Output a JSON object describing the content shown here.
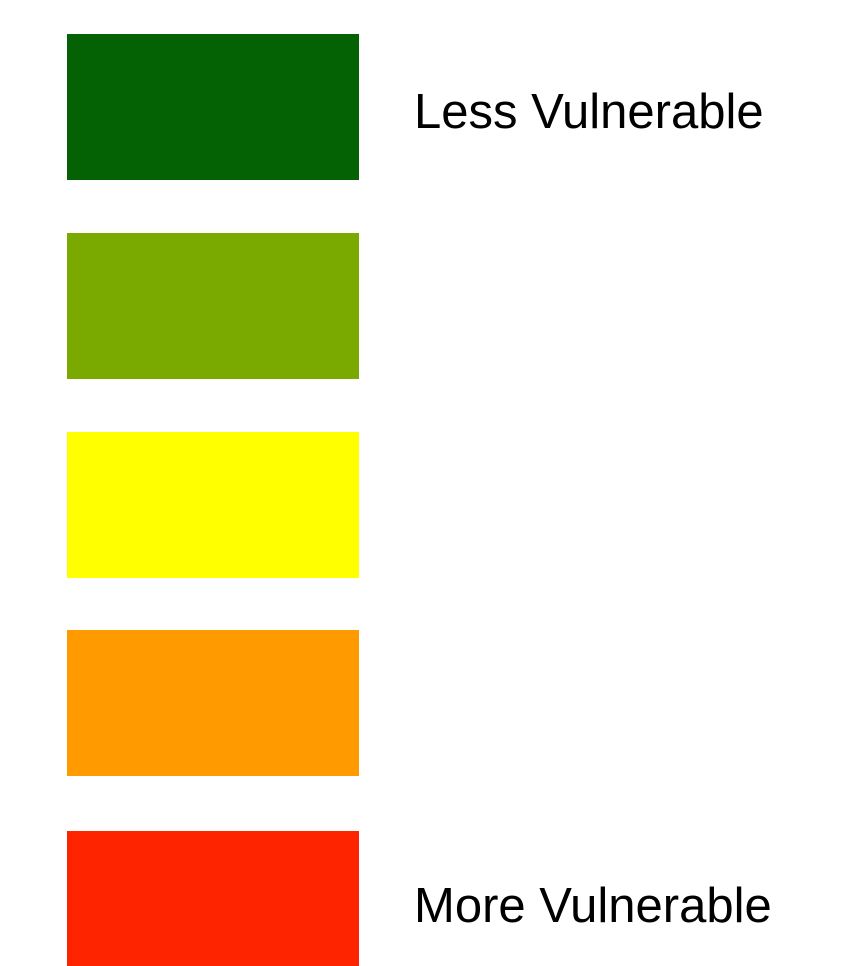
{
  "legend": {
    "swatches": [
      {
        "color": "#046204"
      },
      {
        "color": "#7aaa00"
      },
      {
        "color": "#ffff00"
      },
      {
        "color": "#ff9a00"
      },
      {
        "color": "#ff2400"
      }
    ],
    "top_label": "Less Vulnerable",
    "bottom_label": "More Vulnerable"
  }
}
